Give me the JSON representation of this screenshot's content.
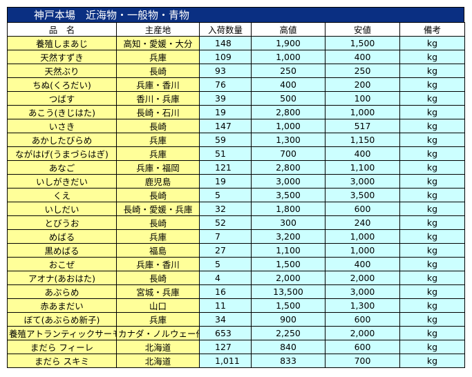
{
  "title": "神戸本場　近海物・一般物・青物",
  "columns": [
    "品　名",
    "主産地",
    "入荷数量",
    "高値",
    "安値",
    "備考"
  ],
  "rows": [
    {
      "name": "養殖しまあじ",
      "origin": "高知・愛媛・大分",
      "qty": "148",
      "high": "1,900",
      "low": "1,500",
      "unit": "kg"
    },
    {
      "name": "天然すずき",
      "origin": "兵庫",
      "qty": "109",
      "high": "1,000",
      "low": "400",
      "unit": "kg"
    },
    {
      "name": "天然ぶり",
      "origin": "長崎",
      "qty": "93",
      "high": "250",
      "low": "250",
      "unit": "kg"
    },
    {
      "name": "ちぬ(くろだい)",
      "origin": "兵庫・香川",
      "qty": "76",
      "high": "400",
      "low": "200",
      "unit": "kg"
    },
    {
      "name": "つばす",
      "origin": "香川・兵庫",
      "qty": "39",
      "high": "500",
      "low": "100",
      "unit": "kg"
    },
    {
      "name": "あこう(きじはた)",
      "origin": "長崎・石川",
      "qty": "19",
      "high": "2,800",
      "low": "1,000",
      "unit": "kg"
    },
    {
      "name": "いさき",
      "origin": "長崎",
      "qty": "147",
      "high": "1,000",
      "low": "517",
      "unit": "kg"
    },
    {
      "name": "あかしたびらめ",
      "origin": "兵庫",
      "qty": "59",
      "high": "1,300",
      "low": "1,150",
      "unit": "kg"
    },
    {
      "name": "ながはげ(うまづらはぎ)",
      "origin": "兵庫",
      "qty": "51",
      "high": "700",
      "low": "400",
      "unit": "kg"
    },
    {
      "name": "あなご",
      "origin": "兵庫・福岡",
      "qty": "121",
      "high": "2,800",
      "low": "1,100",
      "unit": "kg"
    },
    {
      "name": "いしがきだい",
      "origin": "鹿児島",
      "qty": "19",
      "high": "3,000",
      "low": "3,000",
      "unit": "kg"
    },
    {
      "name": "くえ",
      "origin": "長崎",
      "qty": "5",
      "high": "3,500",
      "low": "3,500",
      "unit": "kg"
    },
    {
      "name": "いしだい",
      "origin": "長崎・愛媛・兵庫",
      "qty": "32",
      "high": "1,800",
      "low": "600",
      "unit": "kg"
    },
    {
      "name": "とびうお",
      "origin": "長崎",
      "qty": "52",
      "high": "300",
      "low": "240",
      "unit": "kg"
    },
    {
      "name": "めばる",
      "origin": "兵庫",
      "qty": "7",
      "high": "3,200",
      "low": "1,000",
      "unit": "kg"
    },
    {
      "name": "黒めばる",
      "origin": "福島",
      "qty": "27",
      "high": "1,100",
      "low": "1,000",
      "unit": "kg"
    },
    {
      "name": "おこぜ",
      "origin": "兵庫・香川",
      "qty": "5",
      "high": "1,500",
      "low": "400",
      "unit": "kg"
    },
    {
      "name": "アオナ(あおはた)",
      "origin": "長崎",
      "qty": "4",
      "high": "2,000",
      "low": "2,000",
      "unit": "kg"
    },
    {
      "name": "あぶらめ",
      "origin": "宮城・兵庫",
      "qty": "16",
      "high": "13,500",
      "low": "3,000",
      "unit": "kg"
    },
    {
      "name": "赤あまだい",
      "origin": "山口",
      "qty": "11",
      "high": "1,500",
      "low": "1,300",
      "unit": "kg"
    },
    {
      "name": "ぼて(あぶらめ新子)",
      "origin": "兵庫",
      "qty": "34",
      "high": "900",
      "low": "600",
      "unit": "kg"
    },
    {
      "name": "養殖アトランティックサーモン",
      "origin": "カナダ・ノルウェー他",
      "qty": "653",
      "high": "2,250",
      "low": "2,000",
      "unit": "kg"
    },
    {
      "name": "まだら フィーレ",
      "origin": "北海道",
      "qty": "127",
      "high": "840",
      "low": "600",
      "unit": "kg"
    },
    {
      "name": "まだら スキミ",
      "origin": "北海道",
      "qty": "1,011",
      "high": "833",
      "low": "700",
      "unit": "kg"
    }
  ]
}
